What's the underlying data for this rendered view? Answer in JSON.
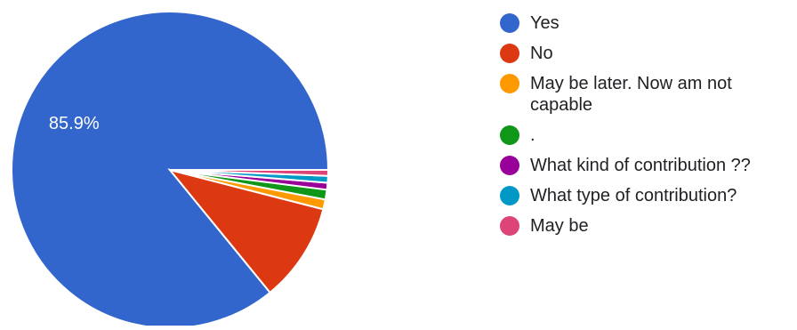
{
  "chart_data": {
    "type": "pie",
    "start_angle_deg": 0,
    "direction": "counterclockwise",
    "series": [
      {
        "values": [
          85.9,
          10.1,
          1.0,
          1.0,
          0.7,
          0.7,
          0.6
        ],
        "labels": [
          "Yes",
          "No",
          "May be later. Now am not capable",
          ".",
          "What kind of contribution ??",
          "What type of contribution?",
          "May be"
        ]
      }
    ],
    "data_labels": [
      "85.9%",
      "",
      "",
      "",
      "",
      "",
      ""
    ],
    "colors": [
      "#3366cc",
      "#dc3912",
      "#ff9900",
      "#109618",
      "#990099",
      "#0099c6",
      "#dd4477"
    ],
    "legend_position": "right",
    "legend": [
      {
        "label": "Yes",
        "color": "#3366cc"
      },
      {
        "label": "No",
        "color": "#dc3912"
      },
      {
        "label": "May be later. Now am not capable",
        "color": "#ff9900"
      },
      {
        "label": ".",
        "color": "#109618"
      },
      {
        "label": "What kind of contribution ??",
        "color": "#990099"
      },
      {
        "label": "What type of contribution?",
        "color": "#0099c6"
      },
      {
        "label": "May be",
        "color": "#dd4477"
      }
    ]
  }
}
